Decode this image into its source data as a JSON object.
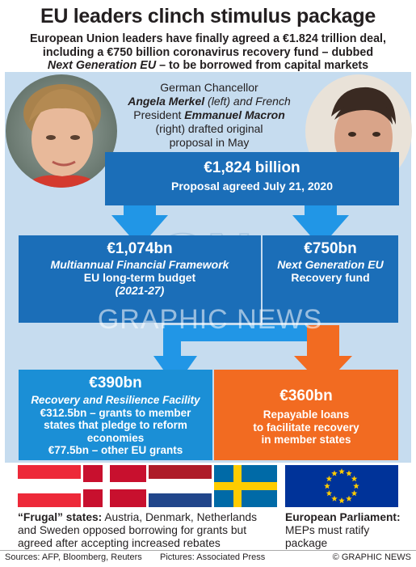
{
  "title": "EU leaders clinch stimulus package",
  "subtitle": {
    "line1": "European Union leaders have finally agreed a €1.824 trillion deal,",
    "line2": "including a €750 billion coronavirus recovery fund – dubbed",
    "line3_italic": "Next Generation EU",
    "line3_rest": " – to be borrowed from capital markets"
  },
  "caption": {
    "l1": "German Chancellor",
    "merkel": "Angela Merkel",
    "l2b": " (left) and French",
    "l3a": "President ",
    "macron": "Emmanuel Macron",
    "l4": "(right) drafted original",
    "l5": "proposal in May"
  },
  "top_box": {
    "amount": "€1,824 billion",
    "sub": "Proposal agreed July 21, 2020"
  },
  "mff_box": {
    "amount": "€1,074bn",
    "l1": "Multiannual Financial Framework",
    "l2": "EU long-term budget",
    "l3": "(2021-27)"
  },
  "ngeu_box": {
    "amount": "€750bn",
    "l1": "Next Generation EU",
    "l2": "Recovery fund"
  },
  "rrf_box": {
    "amount": "€390bn",
    "l1": "Recovery and Resilience Facility",
    "l2": "€312.5bn – grants to member",
    "l3": "states that pledge to reform",
    "l4": "economies",
    "l5": "€77.5bn – other EU grants"
  },
  "loans_box": {
    "amount": "€360bn",
    "l1": "Repayable loans",
    "l2": "to facilitate recovery",
    "l3": "in member states"
  },
  "frugal": {
    "bold": "“Frugal” states:",
    "t1": " Austria, Denmark, Netherlands",
    "t2": "and Sweden opposed borrowing for grants but",
    "t3": "agreed after accepting increased rebates"
  },
  "ep": {
    "bold": "European Parliament:",
    "t1": "MEPs must ratify",
    "t2": "package"
  },
  "footer": {
    "sources": "Sources: AFP, Bloomberg, Reuters",
    "pictures": "Pictures: Associated Press",
    "credit": "© GRAPHIC NEWS"
  },
  "watermark": {
    "logo": "GN",
    "text": "GRAPHIC NEWS"
  },
  "colors": {
    "panel": "#c6dcef",
    "dark_blue": "#1b6eb8",
    "light_blue": "#1b8fd6",
    "orange": "#f26b21",
    "arrow_blue": "#2196e6"
  }
}
